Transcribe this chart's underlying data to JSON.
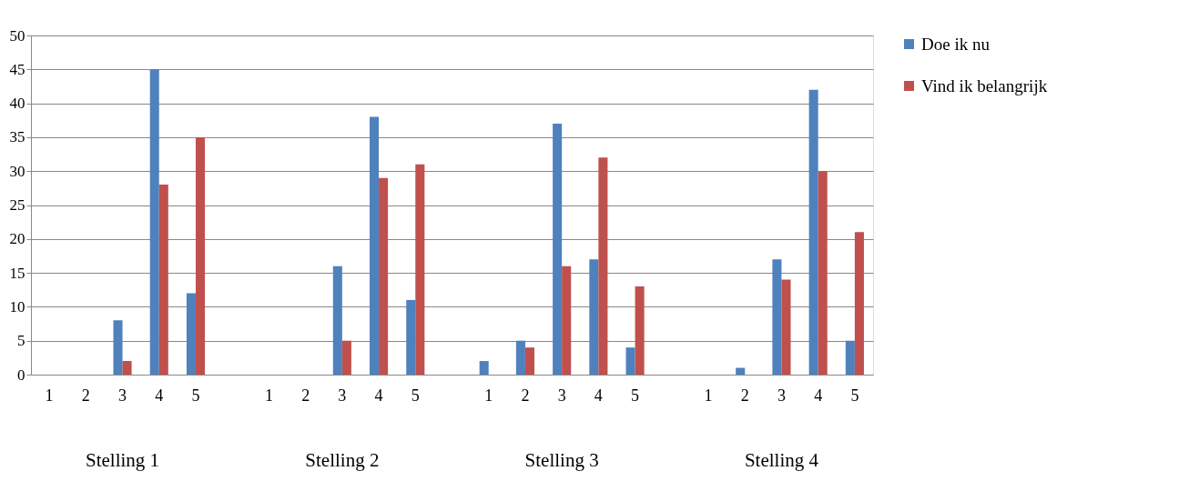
{
  "chart_data": {
    "type": "bar",
    "categories": [
      "1",
      "2",
      "3",
      "4",
      "5",
      null,
      "1",
      "2",
      "3",
      "4",
      "5",
      null,
      "1",
      "2",
      "3",
      "4",
      "5",
      null,
      "1",
      "2",
      "3",
      "4",
      "5"
    ],
    "series": [
      {
        "name": "Doe ik nu",
        "color": "#4f81bd",
        "values": [
          0,
          0,
          8,
          45,
          12,
          null,
          0,
          0,
          16,
          38,
          11,
          null,
          2,
          5,
          37,
          17,
          4,
          null,
          0,
          1,
          17,
          42,
          5
        ]
      },
      {
        "name": "Vind ik belangrijk",
        "color": "#c0504d",
        "values": [
          0,
          0,
          2,
          28,
          35,
          null,
          0,
          0,
          5,
          29,
          31,
          null,
          0,
          4,
          16,
          32,
          13,
          null,
          0,
          0,
          14,
          30,
          21
        ]
      }
    ],
    "annotations": [
      "Stelling 1",
      "Stelling 2",
      "Stelling 3",
      "Stelling 4"
    ],
    "ylim": [
      0,
      50
    ],
    "yticks": [
      0,
      5,
      10,
      15,
      20,
      25,
      30,
      35,
      40,
      45,
      50
    ],
    "grid": "y",
    "legend": "top right"
  }
}
